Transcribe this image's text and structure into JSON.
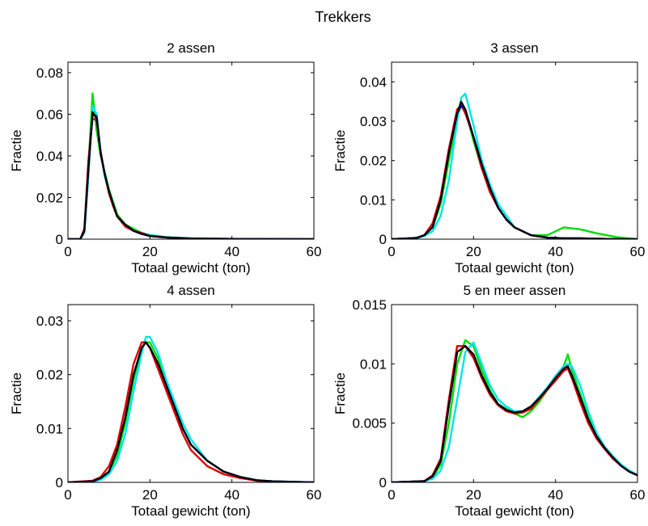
{
  "figure": {
    "title": "Trekkers"
  },
  "colors": {
    "series": [
      "#00dd00",
      "#00e5e5",
      "#e00000",
      "#0000cc",
      "#000000"
    ],
    "axes": "#000000",
    "background": "#ffffff"
  },
  "chart_data": [
    {
      "type": "line",
      "title": "2 assen",
      "xlabel": "Totaal gewicht (ton)",
      "ylabel": "Fractie",
      "xlim": [
        0,
        60
      ],
      "ylim": [
        0,
        0.085
      ],
      "xticks": [
        "0",
        "20",
        "40",
        "60"
      ],
      "yticks": [
        "0",
        "0.02",
        "0.04",
        "0.06",
        "0.08"
      ],
      "grid": false,
      "legend": "none",
      "x": [
        0,
        3,
        4,
        5,
        6,
        7,
        8,
        9,
        10,
        11,
        12,
        14,
        16,
        18,
        20,
        24,
        30,
        40,
        60
      ],
      "series": [
        {
          "values": [
            0,
            0,
            0.004,
            0.035,
            0.07,
            0.052,
            0.04,
            0.032,
            0.024,
            0.018,
            0.012,
            0.007,
            0.005,
            0.003,
            0.002,
            0.001,
            0.0004,
            0.0001,
            0
          ]
        },
        {
          "values": [
            0,
            0,
            0.003,
            0.03,
            0.064,
            0.06,
            0.041,
            0.03,
            0.023,
            0.017,
            0.011,
            0.007,
            0.004,
            0.003,
            0.002,
            0.001,
            0.0004,
            0.0001,
            0
          ]
        },
        {
          "values": [
            0,
            0,
            0.005,
            0.038,
            0.058,
            0.057,
            0.042,
            0.031,
            0.022,
            0.016,
            0.011,
            0.006,
            0.004,
            0.003,
            0.0015,
            0.0008,
            0.0003,
            0.0001,
            0
          ]
        },
        {
          "values": [
            0,
            0,
            0.004,
            0.034,
            0.06,
            0.059,
            0.041,
            0.031,
            0.023,
            0.017,
            0.011,
            0.007,
            0.004,
            0.0025,
            0.0015,
            0.0008,
            0.0003,
            0.0001,
            0
          ]
        },
        {
          "values": [
            0,
            0,
            0.004,
            0.034,
            0.061,
            0.058,
            0.041,
            0.031,
            0.023,
            0.017,
            0.011,
            0.007,
            0.004,
            0.0025,
            0.0015,
            0.0008,
            0.0003,
            0.0001,
            0
          ]
        }
      ]
    },
    {
      "type": "line",
      "title": "3 assen",
      "xlabel": "Totaal gewicht (ton)",
      "ylabel": "Fractie",
      "xlim": [
        0,
        60
      ],
      "ylim": [
        0,
        0.045
      ],
      "xticks": [
        "0",
        "20",
        "40",
        "60"
      ],
      "yticks": [
        "0",
        "0.01",
        "0.02",
        "0.03",
        "0.04"
      ],
      "grid": false,
      "legend": "none",
      "x": [
        0,
        6,
        8,
        10,
        12,
        14,
        16,
        17,
        18,
        20,
        22,
        24,
        26,
        28,
        30,
        34,
        38,
        40,
        42,
        46,
        50,
        55,
        60
      ],
      "series": [
        {
          "values": [
            0,
            0.0003,
            0.001,
            0.003,
            0.009,
            0.02,
            0.031,
            0.034,
            0.033,
            0.025,
            0.018,
            0.013,
            0.008,
            0.005,
            0.003,
            0.001,
            0.001,
            0.002,
            0.003,
            0.0025,
            0.0015,
            0.0005,
            0
          ]
        },
        {
          "values": [
            0,
            0.0002,
            0.0008,
            0.002,
            0.006,
            0.015,
            0.03,
            0.036,
            0.037,
            0.029,
            0.02,
            0.014,
            0.009,
            0.006,
            0.003,
            0.001,
            0.0004,
            0.0003,
            0.0002,
            0.0002,
            0.0001,
            0,
            0
          ]
        },
        {
          "values": [
            0,
            0.0003,
            0.001,
            0.004,
            0.011,
            0.023,
            0.033,
            0.034,
            0.032,
            0.026,
            0.018,
            0.012,
            0.008,
            0.005,
            0.003,
            0.001,
            0.0004,
            0.0003,
            0.0002,
            0.0002,
            0.0001,
            0,
            0
          ]
        },
        {
          "values": [
            0,
            0.0003,
            0.001,
            0.003,
            0.01,
            0.022,
            0.032,
            0.034,
            0.033,
            0.026,
            0.019,
            0.013,
            0.008,
            0.005,
            0.003,
            0.001,
            0.0004,
            0.0003,
            0.0002,
            0.0002,
            0.0001,
            0,
            0
          ]
        },
        {
          "values": [
            0,
            0.0003,
            0.001,
            0.003,
            0.01,
            0.022,
            0.032,
            0.035,
            0.033,
            0.026,
            0.019,
            0.013,
            0.008,
            0.005,
            0.003,
            0.001,
            0.0004,
            0.0003,
            0.0002,
            0.0002,
            0.0001,
            0,
            0
          ]
        }
      ]
    },
    {
      "type": "line",
      "title": "4 assen",
      "xlabel": "Totaal gewicht (ton)",
      "ylabel": "Fractie",
      "xlim": [
        0,
        60
      ],
      "ylim": [
        0,
        0.033
      ],
      "xticks": [
        "0",
        "20",
        "40",
        "60"
      ],
      "yticks": [
        "0",
        "0.01",
        "0.02",
        "0.03"
      ],
      "grid": false,
      "legend": "none",
      "x": [
        0,
        6,
        8,
        10,
        12,
        14,
        16,
        18,
        19,
        20,
        22,
        24,
        26,
        28,
        30,
        34,
        38,
        42,
        46,
        50,
        60
      ],
      "series": [
        {
          "values": [
            0,
            0.0002,
            0.0008,
            0.002,
            0.005,
            0.011,
            0.019,
            0.025,
            0.026,
            0.026,
            0.023,
            0.018,
            0.014,
            0.01,
            0.007,
            0.004,
            0.002,
            0.001,
            0.0004,
            0.0002,
            0
          ]
        },
        {
          "values": [
            0,
            0.0001,
            0.0005,
            0.0015,
            0.004,
            0.009,
            0.017,
            0.024,
            0.027,
            0.027,
            0.024,
            0.019,
            0.015,
            0.011,
            0.008,
            0.004,
            0.002,
            0.001,
            0.0004,
            0.0002,
            0
          ]
        },
        {
          "values": [
            0,
            0.0003,
            0.001,
            0.003,
            0.007,
            0.014,
            0.022,
            0.026,
            0.026,
            0.025,
            0.021,
            0.017,
            0.013,
            0.009,
            0.006,
            0.003,
            0.0015,
            0.0008,
            0.0003,
            0.0001,
            0
          ]
        },
        {
          "values": [
            0,
            0.0002,
            0.0008,
            0.002,
            0.006,
            0.012,
            0.02,
            0.025,
            0.026,
            0.025,
            0.022,
            0.018,
            0.014,
            0.01,
            0.007,
            0.004,
            0.002,
            0.001,
            0.0004,
            0.0002,
            0
          ]
        },
        {
          "values": [
            0,
            0.0002,
            0.0008,
            0.002,
            0.006,
            0.012,
            0.02,
            0.025,
            0.026,
            0.025,
            0.022,
            0.018,
            0.014,
            0.01,
            0.007,
            0.004,
            0.002,
            0.001,
            0.0004,
            0.0002,
            0
          ]
        }
      ]
    },
    {
      "type": "line",
      "title": "5 en meer assen",
      "xlabel": "Totaal gewicht (ton)",
      "ylabel": "Fractie",
      "xlim": [
        0,
        60
      ],
      "ylim": [
        0,
        0.015
      ],
      "xticks": [
        "0",
        "20",
        "40",
        "60"
      ],
      "yticks": [
        "0",
        "0.005",
        "0.01",
        "0.015"
      ],
      "grid": false,
      "legend": "none",
      "x": [
        0,
        8,
        10,
        12,
        14,
        16,
        18,
        20,
        22,
        24,
        26,
        28,
        30,
        32,
        34,
        36,
        38,
        40,
        42,
        43,
        44,
        46,
        48,
        50,
        52,
        54,
        56,
        58,
        60
      ],
      "series": [
        {
          "values": [
            0,
            0.0001,
            0.0004,
            0.0015,
            0.005,
            0.01,
            0.012,
            0.0115,
            0.0095,
            0.0078,
            0.0066,
            0.0062,
            0.0058,
            0.0055,
            0.006,
            0.0068,
            0.0078,
            0.0088,
            0.0098,
            0.0108,
            0.0095,
            0.0075,
            0.0055,
            0.004,
            0.003,
            0.0022,
            0.0015,
            0.001,
            0.0006
          ]
        },
        {
          "values": [
            0,
            0.0001,
            0.0003,
            0.001,
            0.003,
            0.007,
            0.011,
            0.0118,
            0.01,
            0.0082,
            0.007,
            0.0064,
            0.006,
            0.006,
            0.0064,
            0.0072,
            0.008,
            0.009,
            0.0098,
            0.01,
            0.0098,
            0.0082,
            0.006,
            0.0042,
            0.003,
            0.0022,
            0.0015,
            0.001,
            0.0006
          ]
        },
        {
          "values": [
            0,
            0.0001,
            0.0006,
            0.002,
            0.007,
            0.0115,
            0.0115,
            0.0105,
            0.0088,
            0.0074,
            0.0065,
            0.006,
            0.0058,
            0.0059,
            0.0062,
            0.007,
            0.0078,
            0.0086,
            0.0094,
            0.0096,
            0.0088,
            0.0068,
            0.005,
            0.0037,
            0.0028,
            0.002,
            0.0014,
            0.0009,
            0.0006
          ]
        },
        {
          "values": [
            0,
            0.0001,
            0.0005,
            0.0018,
            0.0065,
            0.011,
            0.0115,
            0.0108,
            0.009,
            0.0076,
            0.0066,
            0.0061,
            0.0059,
            0.006,
            0.0064,
            0.0071,
            0.0079,
            0.0088,
            0.0096,
            0.0098,
            0.009,
            0.0072,
            0.0053,
            0.0039,
            0.0029,
            0.0021,
            0.0014,
            0.0009,
            0.0006
          ]
        },
        {
          "values": [
            0,
            0.0001,
            0.0005,
            0.0018,
            0.0065,
            0.011,
            0.0115,
            0.0108,
            0.009,
            0.0076,
            0.0066,
            0.0061,
            0.0059,
            0.006,
            0.0064,
            0.0071,
            0.0079,
            0.0088,
            0.0096,
            0.0098,
            0.009,
            0.0072,
            0.0053,
            0.0039,
            0.0029,
            0.0021,
            0.0014,
            0.0009,
            0.0006
          ]
        }
      ]
    }
  ]
}
